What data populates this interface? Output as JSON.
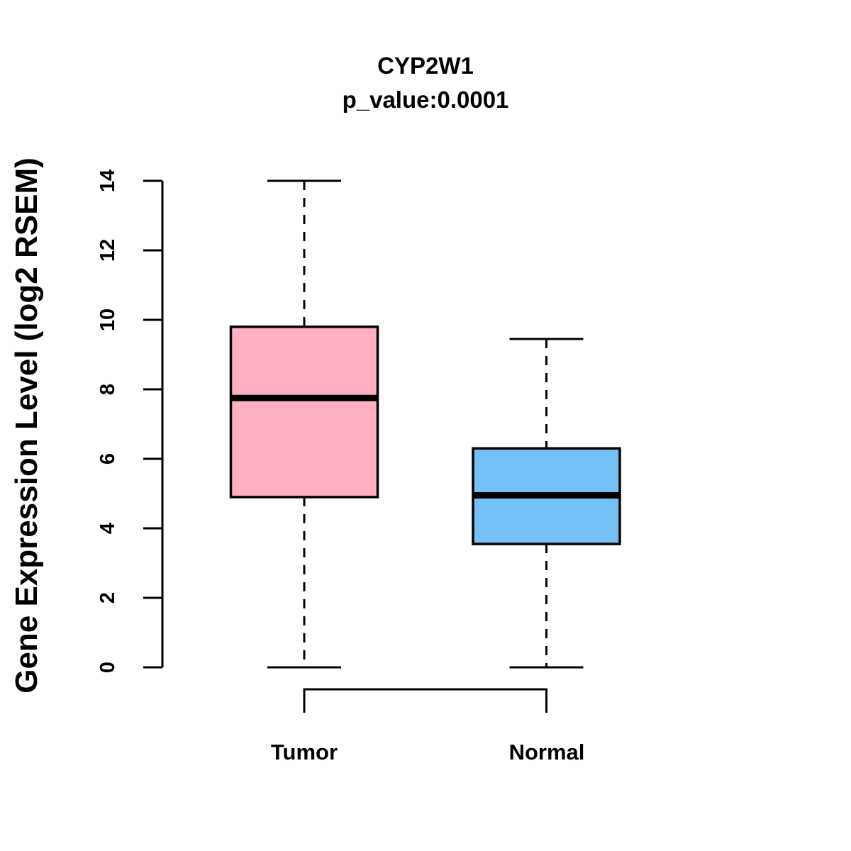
{
  "chart_data": {
    "type": "boxplot",
    "title": "CYP2W1",
    "subtitle": "p_value:0.0001",
    "ylabel": "Gene Expression Level (log2 RSEM)",
    "xlabel": "",
    "ylim": [
      0,
      14
    ],
    "yticks": [
      0,
      2,
      4,
      6,
      8,
      10,
      12,
      14
    ],
    "categories": [
      "Tumor",
      "Normal"
    ],
    "series": [
      {
        "name": "Tumor",
        "fill_color": "#FFAFC1",
        "border_color": "#000000",
        "whisker_low": 0,
        "q1": 4.9,
        "median": 7.75,
        "q3": 9.8,
        "whisker_high": 14.0
      },
      {
        "name": "Normal",
        "fill_color": "#74C0F7",
        "border_color": "#000000",
        "whisker_low": 0,
        "q1": 3.55,
        "median": 4.95,
        "q3": 6.3,
        "whisker_high": 9.45
      }
    ],
    "whisker_line_style": "dashed",
    "comparison_bracket": {
      "connects": [
        "Tumor",
        "Normal"
      ]
    },
    "grid": false,
    "legend": null
  }
}
